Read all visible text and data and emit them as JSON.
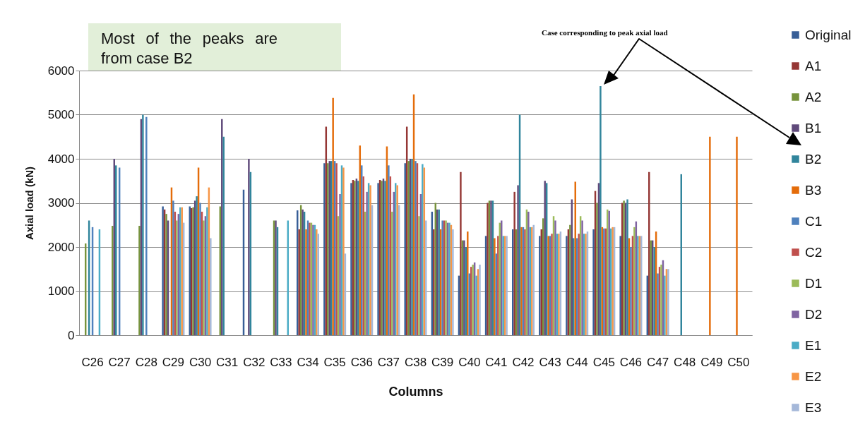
{
  "chart_data": {
    "type": "bar",
    "categories": [
      "C26",
      "C27",
      "C28",
      "C29",
      "C30",
      "C31",
      "C32",
      "C33",
      "C34",
      "C35",
      "C36",
      "C37",
      "C38",
      "C39",
      "C40",
      "C41",
      "C42",
      "C43",
      "C44",
      "C45",
      "C46",
      "C47",
      "C48",
      "C49",
      "C50"
    ],
    "series": [
      {
        "name": "Original",
        "color": "#375e97",
        "values": [
          null,
          null,
          null,
          2920,
          2920,
          null,
          3300,
          null,
          2830,
          3900,
          3450,
          3450,
          3900,
          2800,
          1350,
          2250,
          2400,
          2250,
          2250,
          2400,
          2250,
          1350,
          null,
          null,
          null
        ]
      },
      {
        "name": "A1",
        "color": "#953735",
        "values": [
          null,
          null,
          null,
          2850,
          2880,
          null,
          null,
          null,
          2400,
          4730,
          3520,
          3520,
          4730,
          2400,
          3700,
          3000,
          3250,
          2400,
          2400,
          3270,
          3000,
          3700,
          null,
          null,
          null
        ]
      },
      {
        "name": "A2",
        "color": "#77933c",
        "values": [
          2080,
          2480,
          2480,
          2750,
          2900,
          2920,
          null,
          2600,
          2950,
          3900,
          3500,
          3500,
          3950,
          3000,
          2150,
          3050,
          2400,
          2650,
          2500,
          3000,
          3050,
          2150,
          null,
          null,
          null
        ]
      },
      {
        "name": "B1",
        "color": "#604a7b",
        "values": [
          null,
          4000,
          4900,
          2600,
          3050,
          4900,
          4000,
          2600,
          2850,
          3950,
          3550,
          3550,
          4000,
          2850,
          2150,
          3050,
          3400,
          3500,
          3080,
          3450,
          3000,
          2150,
          null,
          null,
          null
        ]
      },
      {
        "name": "B2",
        "color": "#31859c",
        "values": [
          2600,
          3850,
          5000,
          null,
          3150,
          4500,
          3700,
          2450,
          2800,
          3950,
          3500,
          3500,
          4000,
          2850,
          2000,
          3050,
          5000,
          3450,
          2200,
          5650,
          3080,
          2000,
          3650,
          null,
          null
        ]
      },
      {
        "name": "B3",
        "color": "#e46c0a",
        "values": [
          null,
          null,
          null,
          3350,
          3800,
          null,
          null,
          null,
          2400,
          5380,
          4300,
          4280,
          5460,
          2400,
          2350,
          2200,
          2450,
          2250,
          3480,
          2450,
          2200,
          2350,
          null,
          4500,
          4500
        ]
      },
      {
        "name": "C1",
        "color": "#4f81bd",
        "values": [
          2450,
          3800,
          4950,
          3050,
          3000,
          null,
          null,
          null,
          2600,
          3950,
          3850,
          3850,
          3950,
          2600,
          1400,
          1850,
          2450,
          2250,
          2200,
          2420,
          2000,
          1400,
          null,
          null,
          null
        ]
      },
      {
        "name": "C2",
        "color": "#c0504d",
        "values": [
          null,
          null,
          null,
          2800,
          2800,
          null,
          null,
          null,
          2550,
          3900,
          3600,
          3600,
          3900,
          2600,
          1550,
          2250,
          2400,
          2300,
          2300,
          2420,
          2250,
          1550,
          null,
          null,
          null
        ]
      },
      {
        "name": "D1",
        "color": "#9bbb59",
        "values": [
          null,
          null,
          null,
          2600,
          2600,
          null,
          null,
          null,
          2550,
          2700,
          2800,
          2800,
          2700,
          2600,
          1600,
          2550,
          2850,
          2700,
          2700,
          2850,
          2450,
          1600,
          null,
          null,
          null
        ]
      },
      {
        "name": "D2",
        "color": "#8064a2",
        "values": [
          null,
          null,
          null,
          2750,
          2700,
          null,
          null,
          null,
          2500,
          3200,
          3250,
          3250,
          3200,
          2550,
          1650,
          2600,
          2800,
          2600,
          2600,
          2820,
          2580,
          1700,
          null,
          null,
          null
        ]
      },
      {
        "name": "E1",
        "color": "#4bacc6",
        "values": [
          2400,
          null,
          null,
          2900,
          2900,
          null,
          null,
          2600,
          2500,
          3850,
          3450,
          3450,
          3880,
          2550,
          1350,
          2250,
          2450,
          2300,
          2300,
          2420,
          2250,
          1350,
          null,
          null,
          null
        ]
      },
      {
        "name": "E2",
        "color": "#f79646",
        "values": [
          null,
          null,
          null,
          2900,
          3350,
          null,
          null,
          null,
          2400,
          3800,
          3400,
          3400,
          3800,
          2500,
          1500,
          2250,
          2450,
          2300,
          2300,
          2450,
          2250,
          1500,
          null,
          null,
          null
        ]
      },
      {
        "name": "E3",
        "color": "#a5b8d9",
        "values": [
          null,
          null,
          null,
          2550,
          2200,
          null,
          null,
          null,
          2300,
          1850,
          2950,
          2950,
          2600,
          2400,
          1600,
          2250,
          2500,
          2350,
          2350,
          2450,
          2250,
          1500,
          null,
          null,
          null
        ]
      }
    ],
    "xlabel": "Columns",
    "ylabel": "Axial load (kN)",
    "ylim": [
      0,
      6000
    ],
    "yticks": [
      0,
      1000,
      2000,
      3000,
      4000,
      5000,
      6000
    ],
    "grid": "y",
    "legend": "right",
    "annotations": [
      "Most of the peaks are from case B2",
      "Case corresponding to peak axial load"
    ]
  }
}
